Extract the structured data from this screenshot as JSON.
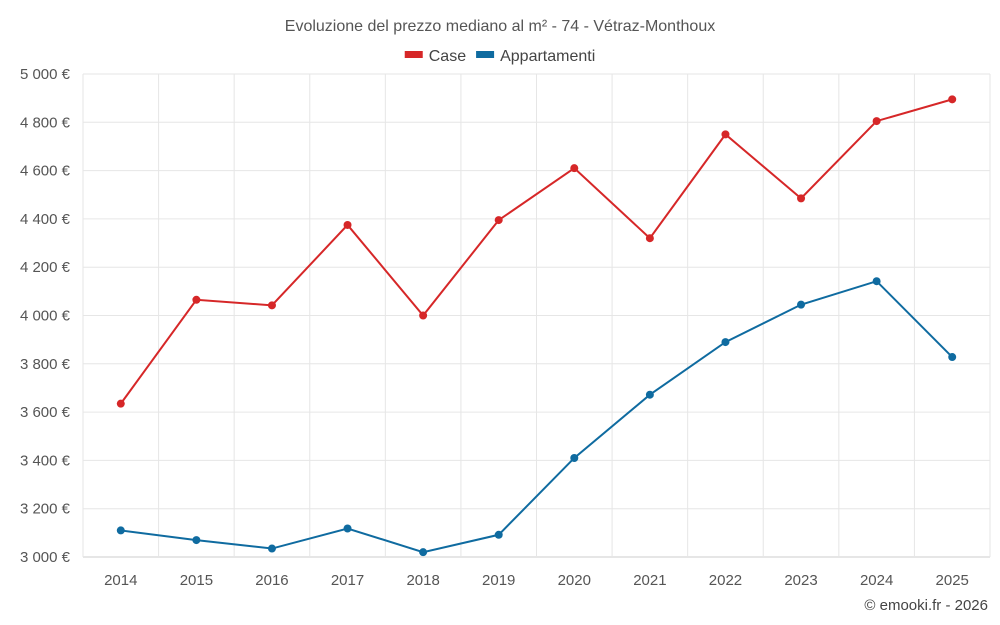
{
  "chart_data": {
    "type": "line",
    "title": "Evoluzione del prezzo mediano al m² - 74 - Vétraz-Monthoux",
    "categories": [
      "2014",
      "2015",
      "2016",
      "2017",
      "2018",
      "2019",
      "2020",
      "2021",
      "2022",
      "2023",
      "2024",
      "2025"
    ],
    "series": [
      {
        "name": "Case",
        "color": "#d62728",
        "values": [
          3635,
          4065,
          4042,
          4375,
          4000,
          4395,
          4610,
          4320,
          4750,
          4485,
          4805,
          4895
        ]
      },
      {
        "name": "Appartamenti",
        "color": "#0f6ba0",
        "values": [
          3110,
          3070,
          3035,
          3118,
          3020,
          3092,
          3410,
          3672,
          3890,
          4045,
          4142,
          3828
        ]
      }
    ],
    "ylim": [
      3000,
      5000
    ],
    "yticks": [
      3000,
      3200,
      3400,
      3600,
      3800,
      4000,
      4200,
      4400,
      4600,
      4800,
      5000
    ],
    "ytick_labels": [
      "3 000 €",
      "3 200 €",
      "3 400 €",
      "3 600 €",
      "3 800 €",
      "4 000 €",
      "4 200 €",
      "4 400 €",
      "4 600 €",
      "4 800 €",
      "5 000 €"
    ],
    "xlabel": "",
    "ylabel": "",
    "grid": true,
    "legend_position": "top-center"
  },
  "credit": "© emooki.fr - 2026"
}
